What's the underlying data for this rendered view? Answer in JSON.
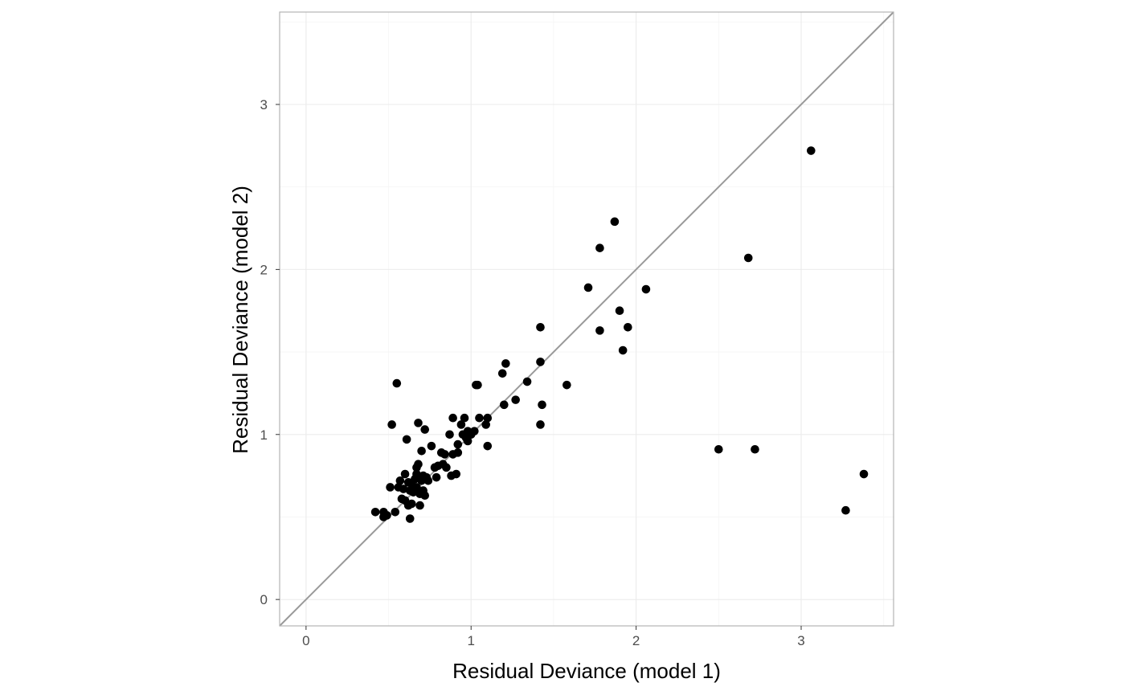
{
  "chart_data": {
    "type": "scatter",
    "title": "",
    "xlabel": "Residual Deviance (model 1)",
    "ylabel": "Residual Deviance (model 2)",
    "xlim": [
      -0.16,
      3.56
    ],
    "ylim": [
      -0.16,
      3.56
    ],
    "x_ticks": [
      0,
      1,
      2,
      3
    ],
    "y_ticks": [
      0,
      1,
      2,
      3
    ],
    "x_tick_labels": [
      "0",
      "1",
      "2",
      "3"
    ],
    "y_tick_labels": [
      "0",
      "1",
      "2",
      "3"
    ],
    "grid": true,
    "reference_line": {
      "slope": 1,
      "intercept": 0,
      "color": "#999999"
    },
    "colors": {
      "points": "#000000",
      "panel_border": "#b3b3b3",
      "grid_major": "#ebebeb",
      "grid_minor": "#f5f5f5",
      "tick_label": "#4d4d4d"
    },
    "points": [
      [
        0.42,
        0.53
      ],
      [
        0.47,
        0.53
      ],
      [
        0.47,
        0.5
      ],
      [
        0.49,
        0.51
      ],
      [
        0.51,
        0.68
      ],
      [
        0.52,
        1.06
      ],
      [
        0.54,
        0.53
      ],
      [
        0.55,
        1.31
      ],
      [
        0.56,
        0.68
      ],
      [
        0.57,
        0.72
      ],
      [
        0.58,
        0.61
      ],
      [
        0.59,
        0.67
      ],
      [
        0.6,
        0.76
      ],
      [
        0.6,
        0.6
      ],
      [
        0.61,
        0.97
      ],
      [
        0.62,
        0.71
      ],
      [
        0.62,
        0.57
      ],
      [
        0.63,
        0.49
      ],
      [
        0.63,
        0.66
      ],
      [
        0.64,
        0.58
      ],
      [
        0.64,
        0.7
      ],
      [
        0.65,
        0.65
      ],
      [
        0.66,
        0.73
      ],
      [
        0.67,
        0.76
      ],
      [
        0.67,
        0.68
      ],
      [
        0.67,
        0.8
      ],
      [
        0.68,
        0.82
      ],
      [
        0.68,
        1.07
      ],
      [
        0.69,
        0.57
      ],
      [
        0.69,
        0.64
      ],
      [
        0.7,
        0.72
      ],
      [
        0.7,
        0.9
      ],
      [
        0.71,
        0.75
      ],
      [
        0.71,
        0.66
      ],
      [
        0.72,
        0.63
      ],
      [
        0.72,
        1.03
      ],
      [
        0.73,
        0.74
      ],
      [
        0.74,
        0.72
      ],
      [
        0.76,
        0.93
      ],
      [
        0.78,
        0.8
      ],
      [
        0.79,
        0.74
      ],
      [
        0.8,
        0.81
      ],
      [
        0.82,
        0.89
      ],
      [
        0.83,
        0.82
      ],
      [
        0.84,
        0.88
      ],
      [
        0.85,
        0.8
      ],
      [
        0.87,
        1.0
      ],
      [
        0.88,
        0.75
      ],
      [
        0.89,
        1.1
      ],
      [
        0.89,
        0.88
      ],
      [
        0.91,
        0.76
      ],
      [
        0.92,
        0.89
      ],
      [
        0.92,
        0.94
      ],
      [
        0.94,
        1.06
      ],
      [
        0.95,
        1.0
      ],
      [
        0.96,
        1.1
      ],
      [
        0.97,
        0.98
      ],
      [
        0.98,
        1.02
      ],
      [
        0.98,
        0.96
      ],
      [
        1.0,
        1.0
      ],
      [
        1.02,
        1.02
      ],
      [
        1.03,
        1.3
      ],
      [
        1.04,
        1.3
      ],
      [
        1.05,
        1.1
      ],
      [
        1.09,
        1.06
      ],
      [
        1.1,
        1.1
      ],
      [
        1.1,
        0.93
      ],
      [
        1.19,
        1.37
      ],
      [
        1.21,
        1.43
      ],
      [
        1.2,
        1.18
      ],
      [
        1.27,
        1.21
      ],
      [
        1.34,
        1.32
      ],
      [
        1.42,
        1.65
      ],
      [
        1.42,
        1.44
      ],
      [
        1.43,
        1.18
      ],
      [
        1.42,
        1.06
      ],
      [
        1.58,
        1.3
      ],
      [
        1.71,
        1.89
      ],
      [
        1.78,
        2.13
      ],
      [
        1.78,
        1.63
      ],
      [
        1.87,
        2.29
      ],
      [
        1.9,
        1.75
      ],
      [
        1.92,
        1.51
      ],
      [
        1.95,
        1.65
      ],
      [
        2.06,
        1.88
      ],
      [
        2.5,
        0.91
      ],
      [
        2.68,
        2.07
      ],
      [
        2.72,
        0.91
      ],
      [
        3.06,
        2.72
      ],
      [
        3.27,
        0.54
      ],
      [
        3.38,
        0.76
      ]
    ]
  }
}
